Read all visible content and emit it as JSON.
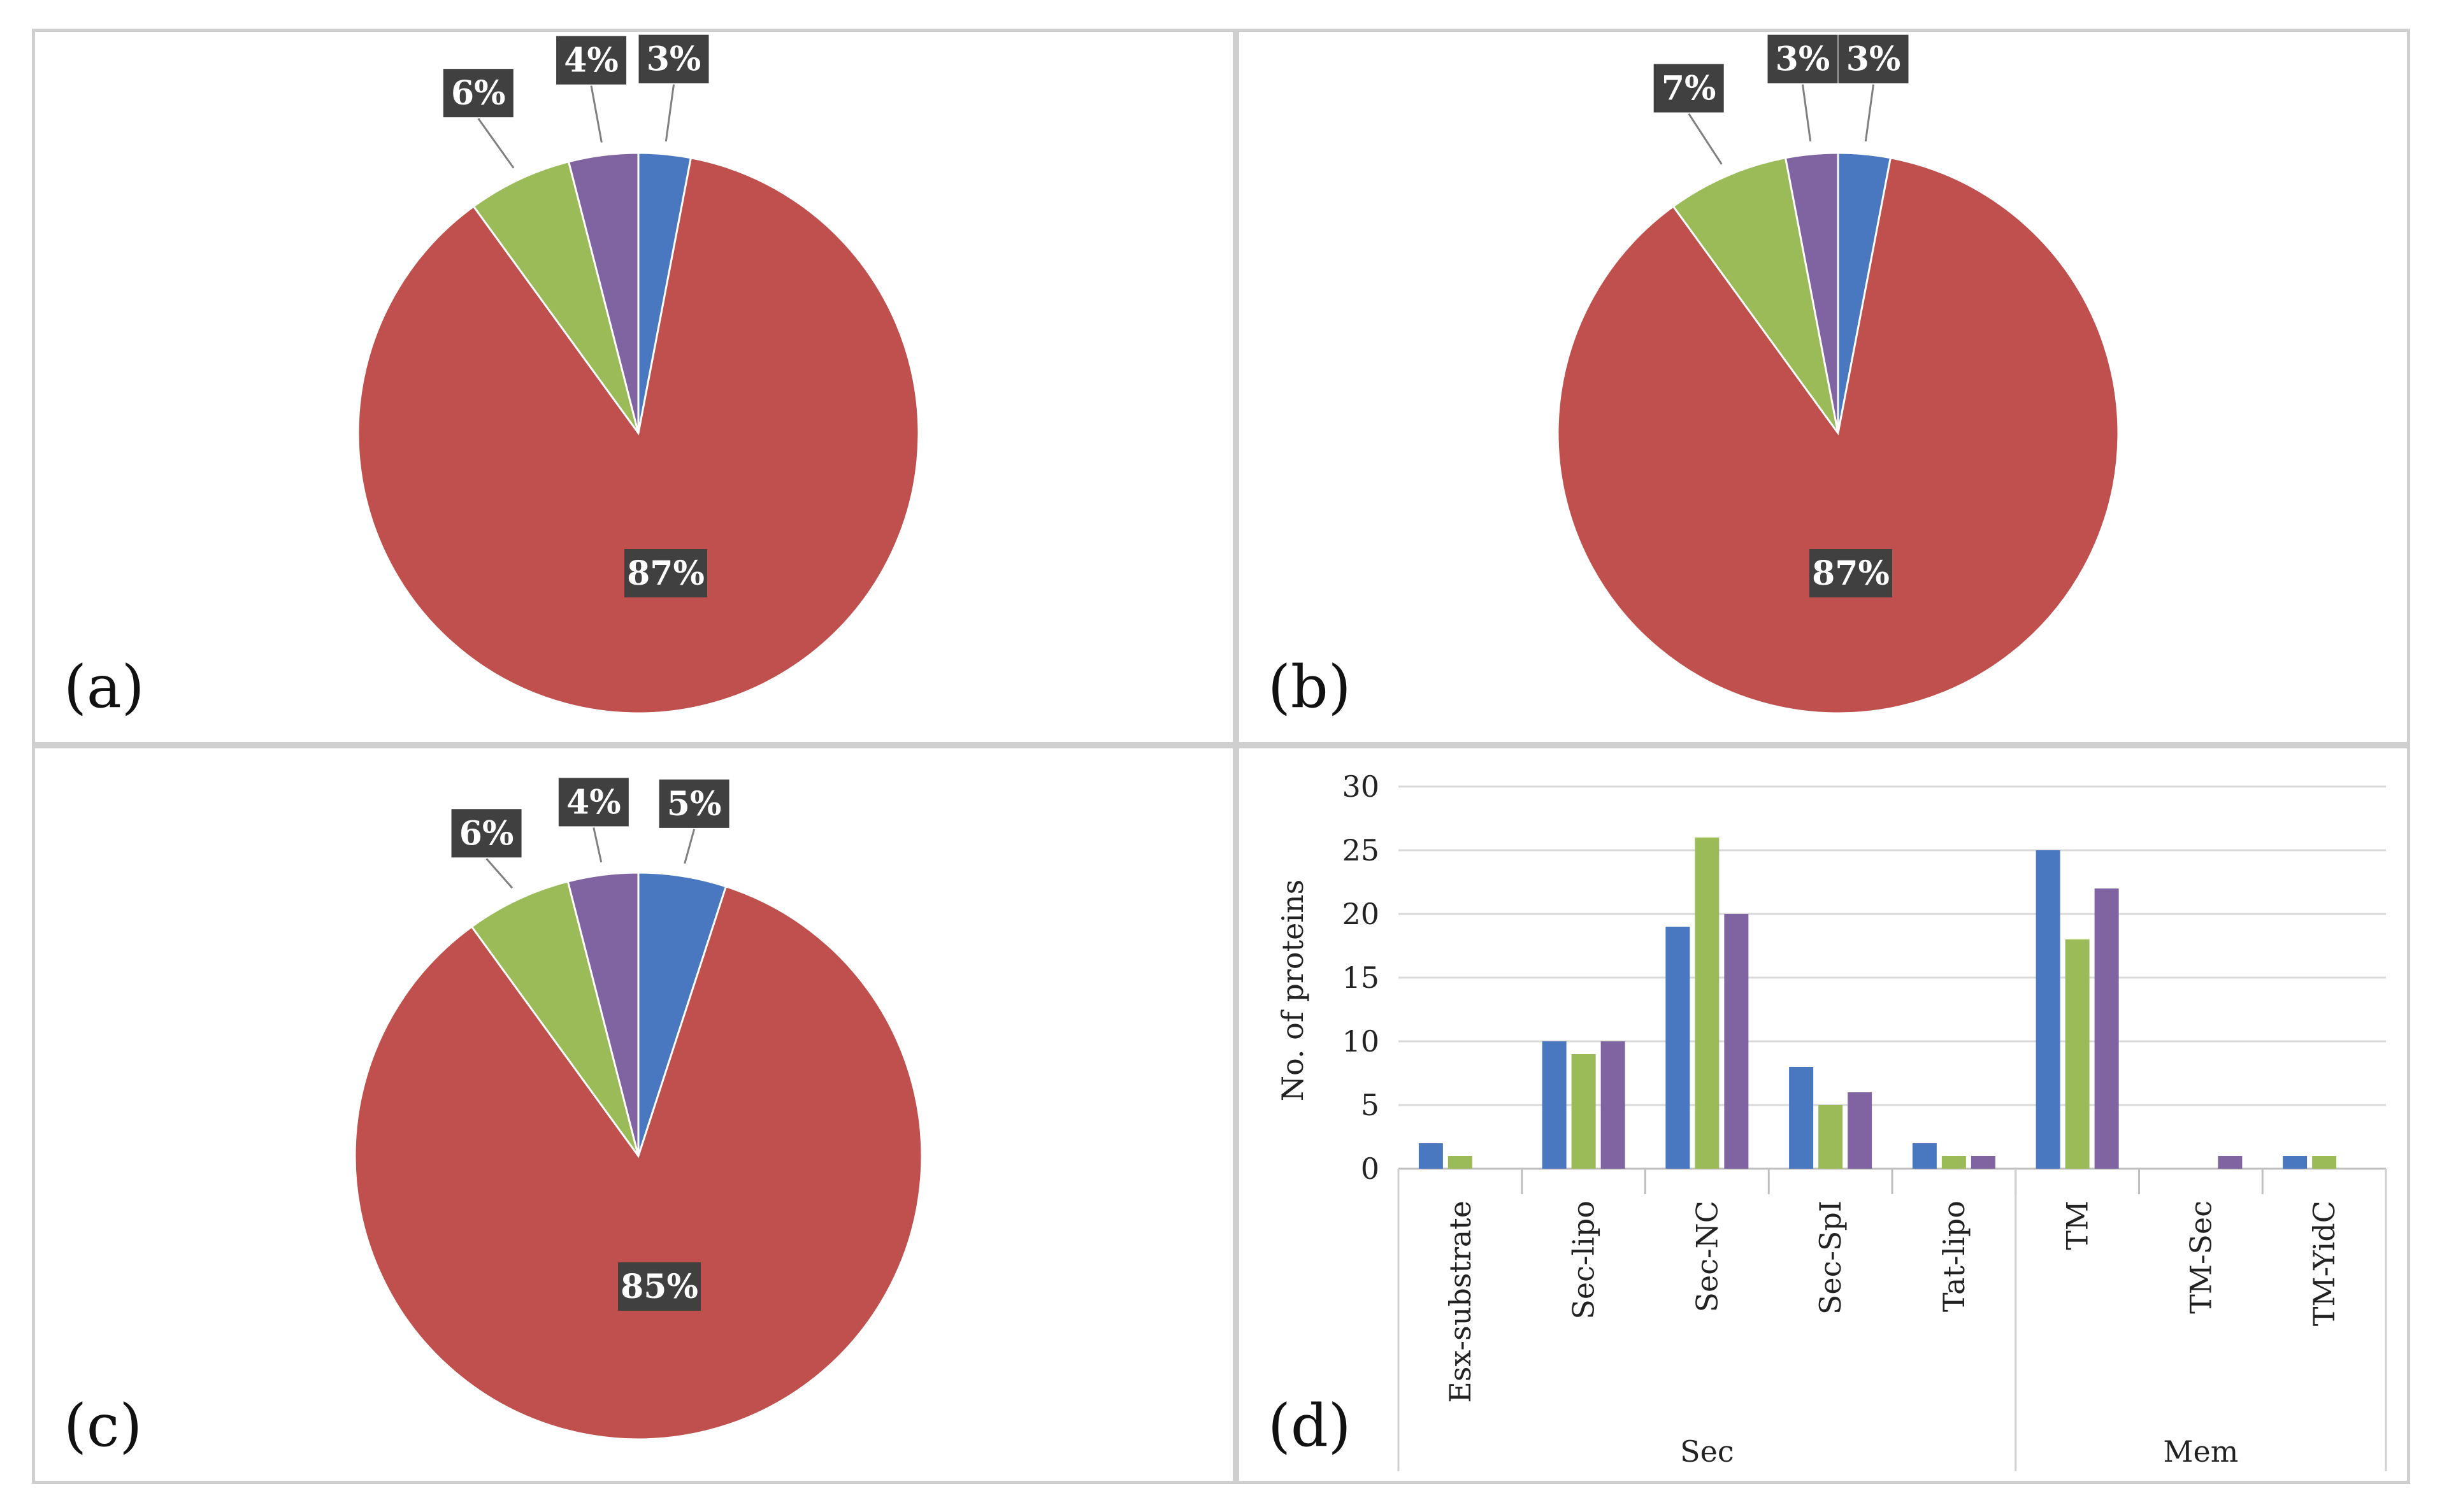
{
  "colors": {
    "blue": "#4a78c0",
    "red": "#c0504d",
    "green": "#9bbb59",
    "purple": "#8064a2",
    "label_bg": "#404040",
    "grid": "#d9d9d9"
  },
  "chart_data": [
    {
      "panel": "(a)",
      "type": "pie",
      "slices": [
        {
          "label": "3%",
          "value": 3,
          "color": "#4a78c0"
        },
        {
          "label": "87%",
          "value": 87,
          "color": "#c0504d"
        },
        {
          "label": "6%",
          "value": 6,
          "color": "#9bbb59"
        },
        {
          "label": "4%",
          "value": 4,
          "color": "#8064a2"
        }
      ]
    },
    {
      "panel": "(b)",
      "type": "pie",
      "slices": [
        {
          "label": "3%",
          "value": 3,
          "color": "#4a78c0"
        },
        {
          "label": "87%",
          "value": 87,
          "color": "#c0504d"
        },
        {
          "label": "7%",
          "value": 7,
          "color": "#9bbb59"
        },
        {
          "label": "3%",
          "value": 3,
          "color": "#8064a2"
        }
      ]
    },
    {
      "panel": "(c)",
      "type": "pie",
      "slices": [
        {
          "label": "5%",
          "value": 5,
          "color": "#4a78c0"
        },
        {
          "label": "85%",
          "value": 85,
          "color": "#c0504d"
        },
        {
          "label": "6%",
          "value": 6,
          "color": "#9bbb59"
        },
        {
          "label": "4%",
          "value": 4,
          "color": "#8064a2"
        }
      ]
    },
    {
      "panel": "(d)",
      "type": "bar",
      "ylabel": "No. of proteins",
      "ylim": [
        0,
        30
      ],
      "yticks": [
        0,
        5,
        10,
        15,
        20,
        25,
        30
      ],
      "grid": true,
      "categories": [
        "Esx-substrate",
        "Sec-lipo",
        "Sec-NC",
        "Sec-SpI",
        "Tat-lipo",
        "TM",
        "TM-Sec",
        "TM-YidC"
      ],
      "groups": [
        {
          "name": "Sec",
          "categories": [
            "Esx-substrate",
            "Sec-lipo",
            "Sec-NC",
            "Sec-SpI",
            "Tat-lipo"
          ]
        },
        {
          "name": "Mem",
          "categories": [
            "TM",
            "TM-Sec",
            "TM-YidC"
          ]
        }
      ],
      "series": [
        {
          "name": "series-1",
          "color": "#4a78c0",
          "values": [
            2,
            10,
            19,
            8,
            2,
            25,
            0,
            1
          ]
        },
        {
          "name": "series-2",
          "color": "#9bbb59",
          "values": [
            1,
            9,
            26,
            5,
            1,
            18,
            0,
            1
          ]
        },
        {
          "name": "series-3",
          "color": "#8064a2",
          "values": [
            0,
            10,
            20,
            6,
            1,
            22,
            1,
            0
          ]
        }
      ]
    }
  ]
}
